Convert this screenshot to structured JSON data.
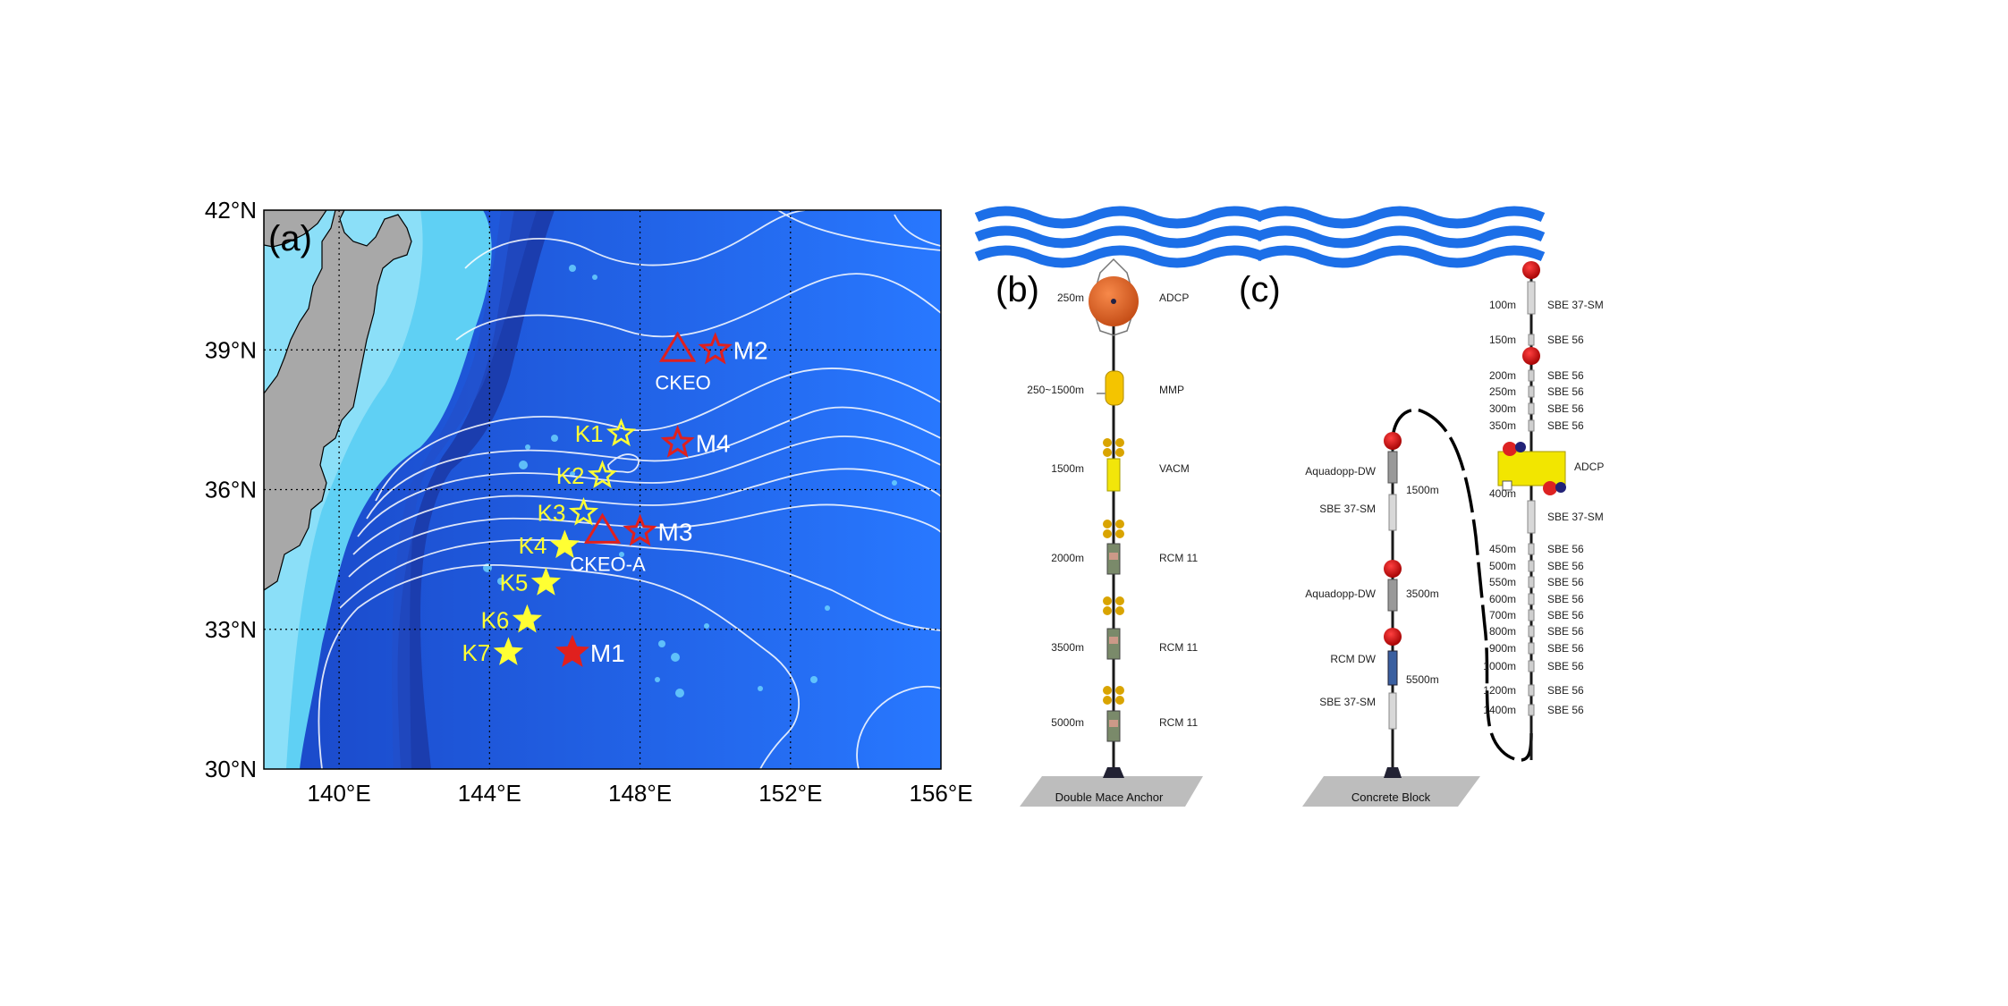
{
  "panels": {
    "a": "(a)",
    "b": "(b)",
    "c": "(c)"
  },
  "map": {
    "lat_ticks": [
      "42°N",
      "39°N",
      "36°N",
      "33°N",
      "30°N"
    ],
    "lon_ticks": [
      "140°E",
      "144°E",
      "148°E",
      "152°E",
      "156°E"
    ],
    "lat_range": [
      30,
      42
    ],
    "lon_range": [
      138,
      156
    ],
    "colors": {
      "land": "#a9a9a9",
      "ocean": "#1f6cf0",
      "shelf": "#62d4f5",
      "trench": "#1a3fb0",
      "contour": "#ffffff",
      "k_sites": "#ffff33",
      "m_sites": "#e0201e"
    },
    "k_sites": [
      {
        "label": "K1",
        "lon": 147.5,
        "lat": 37.2
      },
      {
        "label": "K2",
        "lon": 147.0,
        "lat": 36.3
      },
      {
        "label": "K3",
        "lon": 146.5,
        "lat": 35.5
      },
      {
        "label": "K4",
        "lon": 146.0,
        "lat": 34.8
      },
      {
        "label": "K5",
        "lon": 145.5,
        "lat": 34.0
      },
      {
        "label": "K6",
        "lon": 145.0,
        "lat": 33.2
      },
      {
        "label": "K7",
        "lon": 144.5,
        "lat": 32.5
      }
    ],
    "m_sites": [
      {
        "label": "M1",
        "lon": 146.2,
        "lat": 32.5,
        "filled": true
      },
      {
        "label": "M2",
        "lon": 150.0,
        "lat": 39.0,
        "filled": false
      },
      {
        "label": "M3",
        "lon": 148.0,
        "lat": 35.1,
        "filled": false
      },
      {
        "label": "M4",
        "lon": 149.0,
        "lat": 37.0,
        "filled": false
      }
    ],
    "buoys": [
      {
        "label": "CKEO",
        "lon": 149.0,
        "lat": 39.0
      },
      {
        "label": "CKEO-A",
        "lon": 147.0,
        "lat": 35.1
      }
    ]
  },
  "mooring_b": {
    "items": [
      {
        "depth": "250m",
        "instrument": "ADCP"
      },
      {
        "depth": "250~1500m",
        "instrument": "MMP"
      },
      {
        "depth": "1500m",
        "instrument": "VACM"
      },
      {
        "depth": "2000m",
        "instrument": "RCM 11"
      },
      {
        "depth": "3500m",
        "instrument": "RCM 11"
      },
      {
        "depth": "5000m",
        "instrument": "RCM 11"
      }
    ],
    "anchor": "Double Mace Anchor"
  },
  "mooring_c_left": {
    "items": [
      {
        "depth": "1500m",
        "instrument": "Aquadopp-DW"
      },
      {
        "depth": "",
        "instrument": "SBE 37-SM"
      },
      {
        "depth": "3500m",
        "instrument": "Aquadopp-DW"
      },
      {
        "depth": "5500m",
        "instrument": "RCM DW"
      },
      {
        "depth": "",
        "instrument": "SBE 37-SM"
      }
    ],
    "anchor": "Concrete Block"
  },
  "mooring_c_right": {
    "items": [
      {
        "depth": "100m",
        "instrument": "SBE 37-SM"
      },
      {
        "depth": "150m",
        "instrument": "SBE 56"
      },
      {
        "depth": "200m",
        "instrument": "SBE 56"
      },
      {
        "depth": "250m",
        "instrument": "SBE 56"
      },
      {
        "depth": "300m",
        "instrument": "SBE 56"
      },
      {
        "depth": "350m",
        "instrument": "SBE 56"
      },
      {
        "depth": "",
        "instrument": "ADCP"
      },
      {
        "depth": "400m",
        "instrument": ""
      },
      {
        "depth": "",
        "instrument": "SBE 37-SM"
      },
      {
        "depth": "450m",
        "instrument": "SBE 56"
      },
      {
        "depth": "500m",
        "instrument": "SBE 56"
      },
      {
        "depth": "550m",
        "instrument": "SBE 56"
      },
      {
        "depth": "600m",
        "instrument": "SBE 56"
      },
      {
        "depth": "700m",
        "instrument": "SBE 56"
      },
      {
        "depth": "800m",
        "instrument": "SBE 56"
      },
      {
        "depth": "900m",
        "instrument": "SBE 56"
      },
      {
        "depth": "1000m",
        "instrument": "SBE 56"
      },
      {
        "depth": "1200m",
        "instrument": "SBE 56"
      },
      {
        "depth": "1400m",
        "instrument": "SBE 56"
      }
    ]
  }
}
